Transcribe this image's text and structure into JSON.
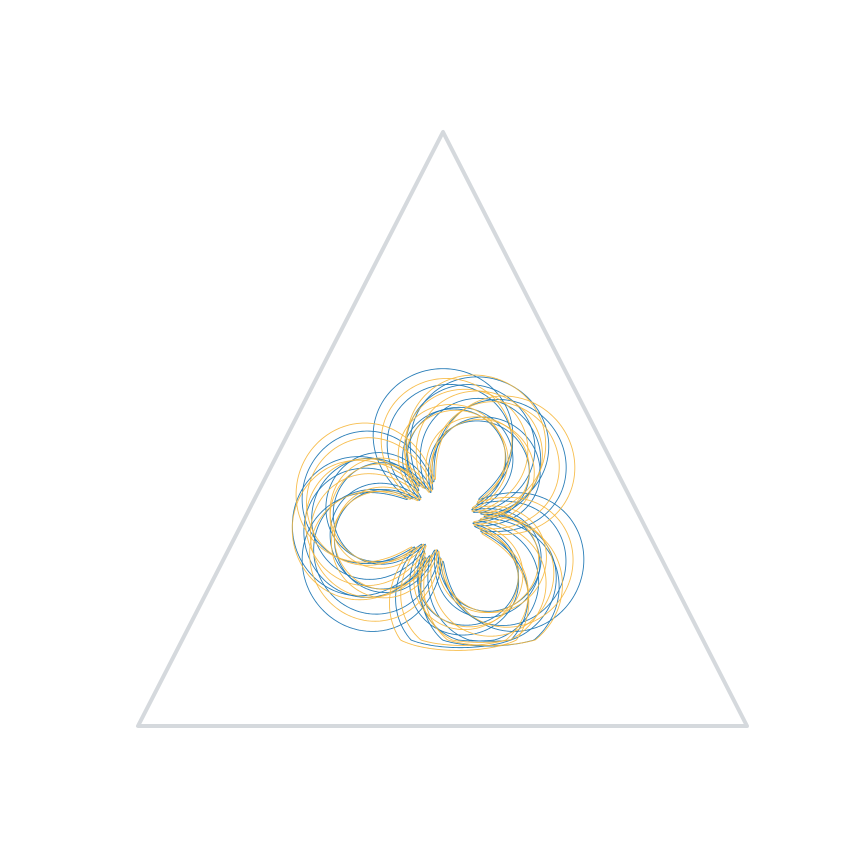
{
  "diagram": {
    "kind": "ternary-simplex-trajectories",
    "colors": {
      "frame": "#d5d9dd",
      "series_a": "#1f77b4",
      "series_b": "#f6b73c",
      "background": "#ffffff"
    },
    "series": [
      {
        "color_key": "series_a",
        "curves": 10
      },
      {
        "color_key": "series_b",
        "curves": 10
      }
    ]
  }
}
